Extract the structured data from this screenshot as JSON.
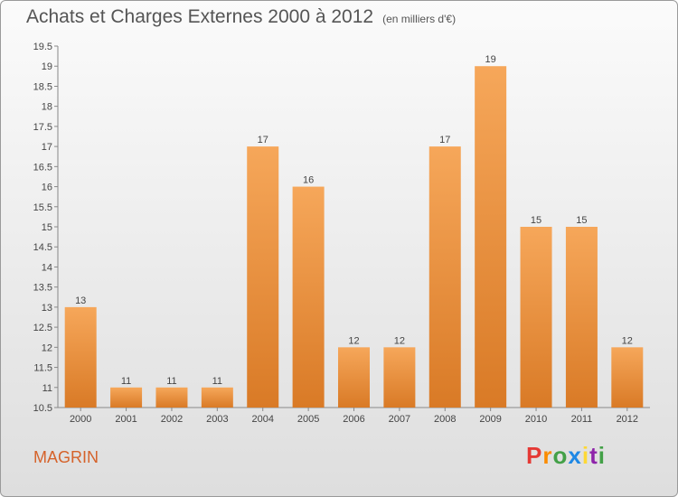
{
  "title": "Achats et Charges Externes 2000 à 2012",
  "unit": "(en milliers d'€)",
  "municipality": "MAGRIN",
  "logo": {
    "text": "Proxiti",
    "letters": [
      {
        "char": "P",
        "color": "#e53935"
      },
      {
        "char": "r",
        "color": "#fb8c00"
      },
      {
        "char": "o",
        "color": "#43a047"
      },
      {
        "char": "x",
        "color": "#1e88e5"
      },
      {
        "char": "i",
        "color": "#fdd835"
      },
      {
        "char": "t",
        "color": "#8e24aa"
      },
      {
        "char": "i",
        "color": "#43a047"
      }
    ]
  },
  "colors": {
    "bar_light": "#f6a75a",
    "bar_dark": "#d97a26",
    "axis": "#888888",
    "grid": "#dddddd"
  },
  "chart_data": {
    "type": "bar",
    "title": "Achats et Charges Externes 2000 à 2012",
    "unit": "(en milliers d'€)",
    "categories": [
      "2000",
      "2001",
      "2002",
      "2003",
      "2004",
      "2005",
      "2006",
      "2007",
      "2008",
      "2009",
      "2010",
      "2011",
      "2012"
    ],
    "values": [
      13,
      11,
      11,
      11,
      17,
      16,
      12,
      12,
      17,
      19,
      15,
      15,
      12
    ],
    "ylim": [
      10.5,
      19.5
    ],
    "yticks": [
      10.5,
      11,
      11.5,
      12,
      12.5,
      13,
      13.5,
      14,
      14.5,
      15,
      15.5,
      16,
      16.5,
      17,
      17.5,
      18,
      18.5,
      19,
      19.5
    ],
    "grid": false,
    "legend": "none"
  }
}
